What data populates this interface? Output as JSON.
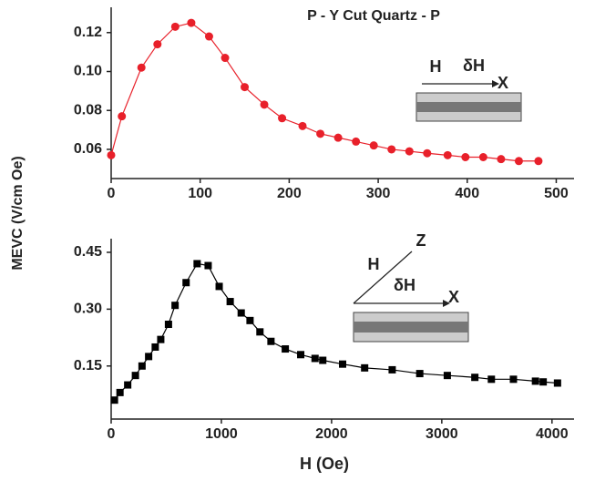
{
  "chart_data": [
    {
      "type": "scatter-line",
      "title": "P - Y Cut Quartz - P",
      "ylabel": "MEVC (V/cm Oe)",
      "marker": "circle",
      "color": "#e8202a",
      "x": [
        0,
        12,
        34,
        52,
        72,
        90,
        110,
        128,
        150,
        172,
        192,
        215,
        235,
        255,
        275,
        295,
        315,
        335,
        355,
        378,
        398,
        418,
        438,
        458,
        480
      ],
      "values": [
        0.057,
        0.077,
        0.102,
        0.114,
        0.123,
        0.125,
        0.118,
        0.107,
        0.092,
        0.083,
        0.076,
        0.072,
        0.068,
        0.066,
        0.064,
        0.062,
        0.06,
        0.059,
        0.058,
        0.057,
        0.056,
        0.056,
        0.055,
        0.054,
        0.054
      ],
      "xlim": [
        0,
        520
      ],
      "xticks": [
        0,
        100,
        200,
        300,
        400,
        500
      ],
      "ylim": [
        0.045,
        0.133
      ],
      "yticks": [
        {
          "value": 0.06,
          "label": "0.06"
        },
        {
          "value": 0.08,
          "label": "0.08"
        },
        {
          "value": 0.1,
          "label": "0.10"
        },
        {
          "value": 0.12,
          "label": "0.12"
        }
      ],
      "annotations": [
        "H",
        "δH",
        "X"
      ]
    },
    {
      "type": "scatter-line",
      "xlabel": "H (Oe)",
      "marker": "square",
      "color": "#000000",
      "x": [
        30,
        80,
        150,
        220,
        280,
        340,
        400,
        450,
        520,
        580,
        680,
        780,
        880,
        980,
        1080,
        1180,
        1260,
        1350,
        1450,
        1580,
        1720,
        1850,
        1920,
        2100,
        2300,
        2550,
        2800,
        3050,
        3300,
        3450,
        3650,
        3850,
        3920,
        4050
      ],
      "values": [
        0.06,
        0.08,
        0.1,
        0.125,
        0.15,
        0.175,
        0.2,
        0.22,
        0.26,
        0.31,
        0.37,
        0.42,
        0.415,
        0.36,
        0.32,
        0.29,
        0.27,
        0.24,
        0.215,
        0.195,
        0.18,
        0.17,
        0.165,
        0.155,
        0.145,
        0.14,
        0.13,
        0.125,
        0.12,
        0.115,
        0.115,
        0.11,
        0.108,
        0.105
      ],
      "xlim": [
        0,
        4200
      ],
      "xticks": [
        0,
        1000,
        2000,
        3000,
        4000
      ],
      "ylim": [
        0.01,
        0.486
      ],
      "yticks": [
        0.15,
        {
          "value": 0.3,
          "label": "0.30"
        },
        0.45
      ],
      "annotations": [
        "H",
        "Z",
        "δH",
        "X"
      ]
    }
  ]
}
